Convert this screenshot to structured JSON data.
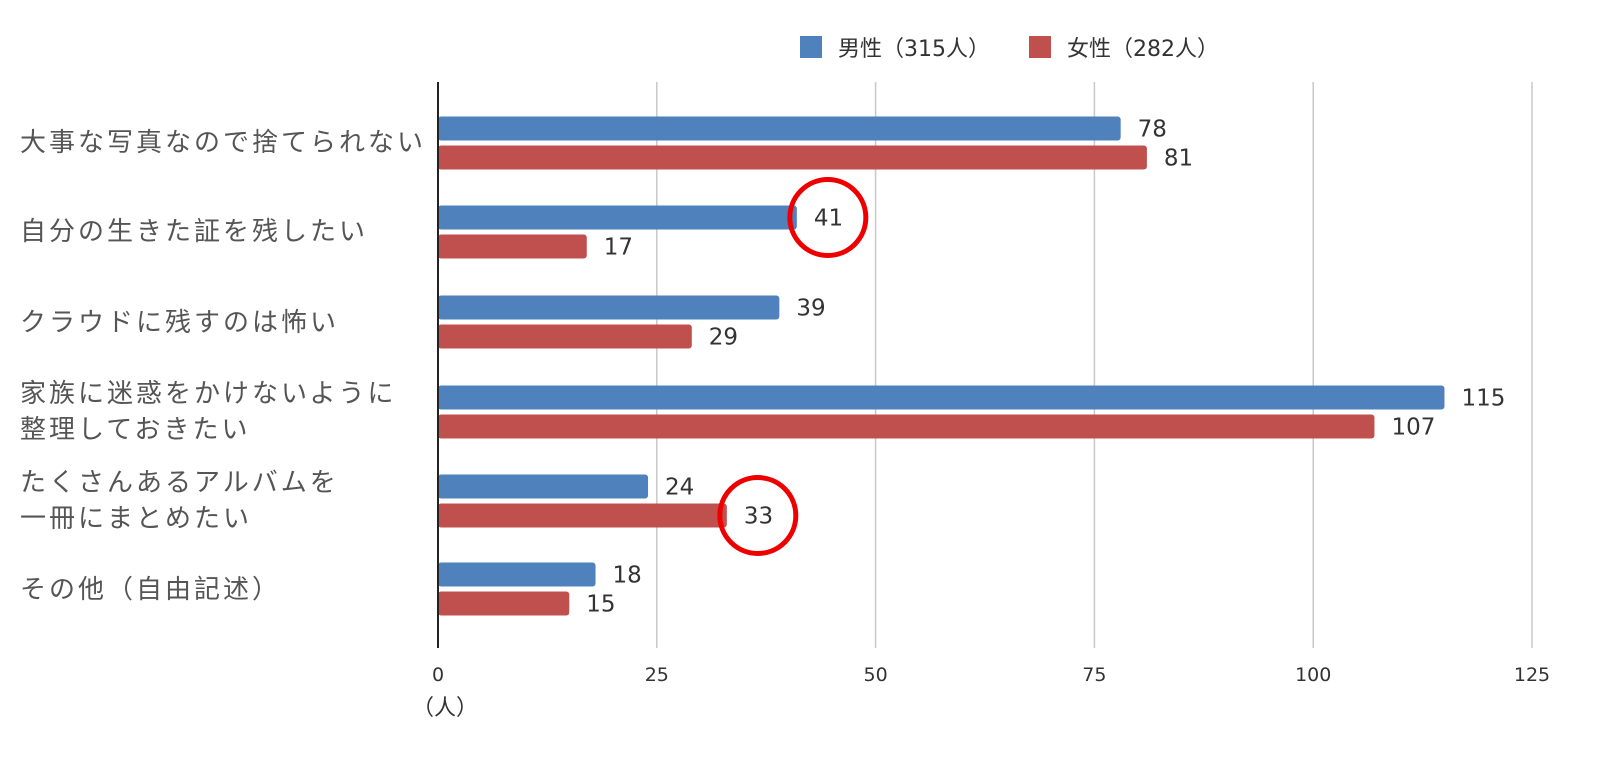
{
  "chart_data": {
    "type": "bar",
    "orientation": "horizontal",
    "categories": [
      "大事な写真なので捨てられない",
      "自分の生きた証を残したい",
      "クラウドに残すのは怖い",
      "家族に迷惑をかけないように\n整理しておきたい",
      "たくさんあるアルバムを\n一冊にまとめたい",
      "その他（自由記述）"
    ],
    "series": [
      {
        "name": "男性（315人）",
        "color": "#4f81bd",
        "values": [
          78,
          41,
          39,
          115,
          24,
          18
        ]
      },
      {
        "name": "女性（282人）",
        "color": "#c0504d",
        "values": [
          81,
          17,
          29,
          107,
          33,
          15
        ]
      }
    ],
    "xlim": [
      0,
      125
    ],
    "xticks": [
      0,
      25,
      50,
      75,
      100,
      125
    ],
    "x_unit_label": "（人）",
    "grid": true,
    "legend_position": "top-right",
    "highlight_circles": [
      {
        "series": 0,
        "category": 1,
        "color": "#ee0000"
      },
      {
        "series": 1,
        "category": 4,
        "color": "#ee0000"
      }
    ]
  }
}
